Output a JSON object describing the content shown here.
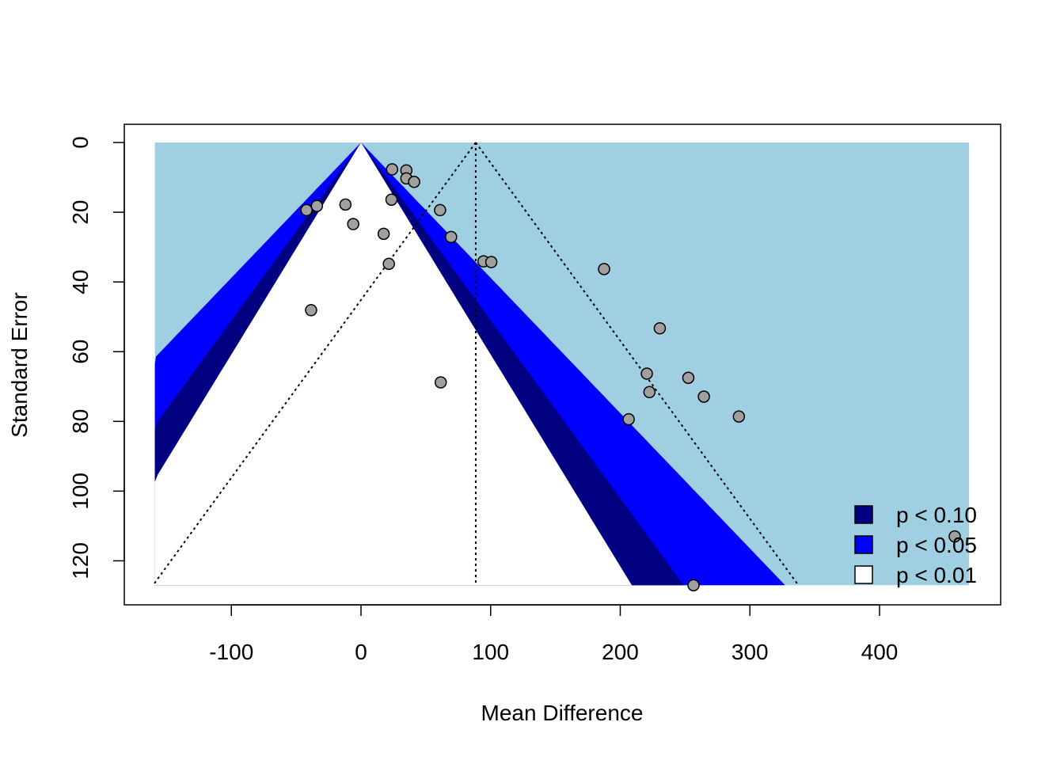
{
  "chart_data": {
    "type": "scatter",
    "subtype": "contour-enhanced funnel plot",
    "title": "",
    "xlabel": "Mean Difference",
    "ylabel": "Standard Error",
    "xlim": [
      -162,
      472
    ],
    "ylim_reversed": [
      0,
      127
    ],
    "x_ticks": [
      "-100",
      "0",
      "100",
      "200",
      "300",
      "400"
    ],
    "y_ticks": [
      "0",
      "20",
      "40",
      "60",
      "80",
      "100",
      "120"
    ],
    "funnel_center": 0,
    "pooled_estimate": 88.5,
    "z_values": {
      "p10": 1.645,
      "p05": 1.96,
      "p01": 2.576
    },
    "region_colors": {
      "outside": "#9fcfe0",
      "p10": "#000080",
      "p05": "#0000ff",
      "p01": "#ffffff"
    },
    "point_color": "#a0a0a0",
    "points": [
      {
        "x": 24,
        "y": 7.7
      },
      {
        "x": 35,
        "y": 8.0
      },
      {
        "x": 35,
        "y": 10.3
      },
      {
        "x": 41,
        "y": 11.3
      },
      {
        "x": 23.5,
        "y": 16.4
      },
      {
        "x": -12,
        "y": 17.8
      },
      {
        "x": -34,
        "y": 18.2
      },
      {
        "x": -42,
        "y": 19.4
      },
      {
        "x": 61,
        "y": 19.4
      },
      {
        "x": -6,
        "y": 23.4
      },
      {
        "x": 17.5,
        "y": 26.2
      },
      {
        "x": 69.5,
        "y": 27.1
      },
      {
        "x": 94.5,
        "y": 34.1
      },
      {
        "x": 100.5,
        "y": 34.3
      },
      {
        "x": 21.5,
        "y": 34.8
      },
      {
        "x": 187.5,
        "y": 36.3
      },
      {
        "x": -38.5,
        "y": 48.1
      },
      {
        "x": 230.5,
        "y": 53.3
      },
      {
        "x": 220.5,
        "y": 66.3
      },
      {
        "x": 252.5,
        "y": 67.5
      },
      {
        "x": 61.5,
        "y": 68.8
      },
      {
        "x": 222.5,
        "y": 71.6
      },
      {
        "x": 264.5,
        "y": 72.9
      },
      {
        "x": 291.5,
        "y": 78.6
      },
      {
        "x": 206.5,
        "y": 79.4
      },
      {
        "x": 458,
        "y": 113.0
      },
      {
        "x": 256.5,
        "y": 127.0
      }
    ],
    "legend": {
      "position": "bottom-right",
      "entries": [
        {
          "label": "p < 0.10",
          "color": "#000080"
        },
        {
          "label": "p < 0.05",
          "color": "#0000ff"
        },
        {
          "label": "p < 0.01",
          "color": "#ffffff"
        }
      ]
    }
  }
}
